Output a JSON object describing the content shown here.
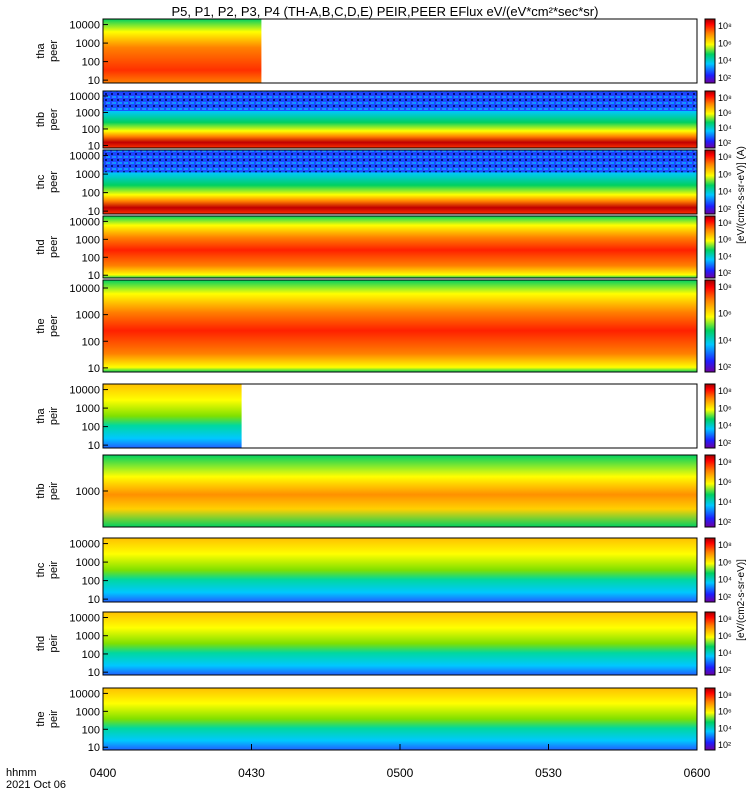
{
  "title": "P5, P1, P2, P3, P4 (TH-A,B,C,D,E) PEIR,PEER EFlux eV/(eV*cm²*sec*sr)",
  "colorbar_label_peer": "[eV/(cm2-s-sr-eV)] (A)",
  "colorbar_label_peir": "[eV/(cm2-s-sr-eV)]",
  "chart_data": {
    "type": "heatmap",
    "x_label_prefix": "hhmm",
    "date_label": "2021 Oct 06",
    "x_ticks": [
      "0400",
      "0430",
      "0500",
      "0530",
      "0600"
    ],
    "x_tick_minutes": [
      0,
      30,
      60,
      90,
      120
    ],
    "x_range_minutes": [
      0,
      120
    ],
    "colorbar_ticks": [
      "10⁸",
      "10⁶",
      "10⁴",
      "10²"
    ],
    "panels": [
      {
        "probe": "tha",
        "species": "peer",
        "ylabel_top": "tha",
        "ylabel_bottom": "peer",
        "y_ticks": [
          "10000",
          "1000",
          "100",
          "10"
        ],
        "y_tick_values": [
          10000,
          1000,
          100,
          10
        ],
        "data_end_minute": 32,
        "log_scale": true
      },
      {
        "probe": "thb",
        "species": "peer",
        "ylabel_top": "thb",
        "ylabel_bottom": "peer",
        "y_ticks": [
          "10000",
          "1000",
          "100",
          "10"
        ],
        "y_tick_values": [
          10000,
          1000,
          100,
          10
        ],
        "data_end_minute": 120,
        "log_scale": true
      },
      {
        "probe": "thc",
        "species": "peer",
        "ylabel_top": "thc",
        "ylabel_bottom": "peer",
        "y_ticks": [
          "10000",
          "1000",
          "100",
          "10"
        ],
        "y_tick_values": [
          10000,
          1000,
          100,
          10
        ],
        "data_end_minute": 120,
        "log_scale": true
      },
      {
        "probe": "thd",
        "species": "peer",
        "ylabel_top": "thd",
        "ylabel_bottom": "peer",
        "y_ticks": [
          "10000",
          "1000",
          "100",
          "10"
        ],
        "y_tick_values": [
          10000,
          1000,
          100,
          10
        ],
        "data_end_minute": 120,
        "log_scale": true
      },
      {
        "probe": "the",
        "species": "peer",
        "ylabel_top": "the",
        "ylabel_bottom": "peer",
        "y_ticks": [
          "10000",
          "1000",
          "100",
          "10"
        ],
        "y_tick_values": [
          10000,
          1000,
          100,
          10
        ],
        "data_end_minute": 120,
        "log_scale": true
      },
      {
        "probe": "tha",
        "species": "peir",
        "ylabel_top": "tha",
        "ylabel_bottom": "peir",
        "y_ticks": [
          "10000",
          "1000",
          "100",
          "10"
        ],
        "y_tick_values": [
          10000,
          1000,
          100,
          10
        ],
        "data_end_minute": 28,
        "log_scale": true
      },
      {
        "probe": "thb",
        "species": "peir",
        "ylabel_top": "thb",
        "ylabel_bottom": "peir",
        "y_ticks": [
          "1000"
        ],
        "y_tick_values": [
          1000
        ],
        "data_end_minute": 120,
        "log_scale": true
      },
      {
        "probe": "thc",
        "species": "peir",
        "ylabel_top": "thc",
        "ylabel_bottom": "peir",
        "y_ticks": [
          "10000",
          "1000",
          "100",
          "10"
        ],
        "y_tick_values": [
          10000,
          1000,
          100,
          10
        ],
        "data_end_minute": 120,
        "log_scale": true
      },
      {
        "probe": "thd",
        "species": "peir",
        "ylabel_top": "thd",
        "ylabel_bottom": "peir",
        "y_ticks": [
          "10000",
          "1000",
          "100",
          "10"
        ],
        "y_tick_values": [
          10000,
          1000,
          100,
          10
        ],
        "data_end_minute": 120,
        "log_scale": true
      },
      {
        "probe": "the",
        "species": "peir",
        "ylabel_top": "the",
        "ylabel_bottom": "peir",
        "y_ticks": [
          "10000",
          "1000",
          "100",
          "10"
        ],
        "y_tick_values": [
          10000,
          1000,
          100,
          10
        ],
        "data_end_minute": 120,
        "log_scale": true
      }
    ]
  }
}
